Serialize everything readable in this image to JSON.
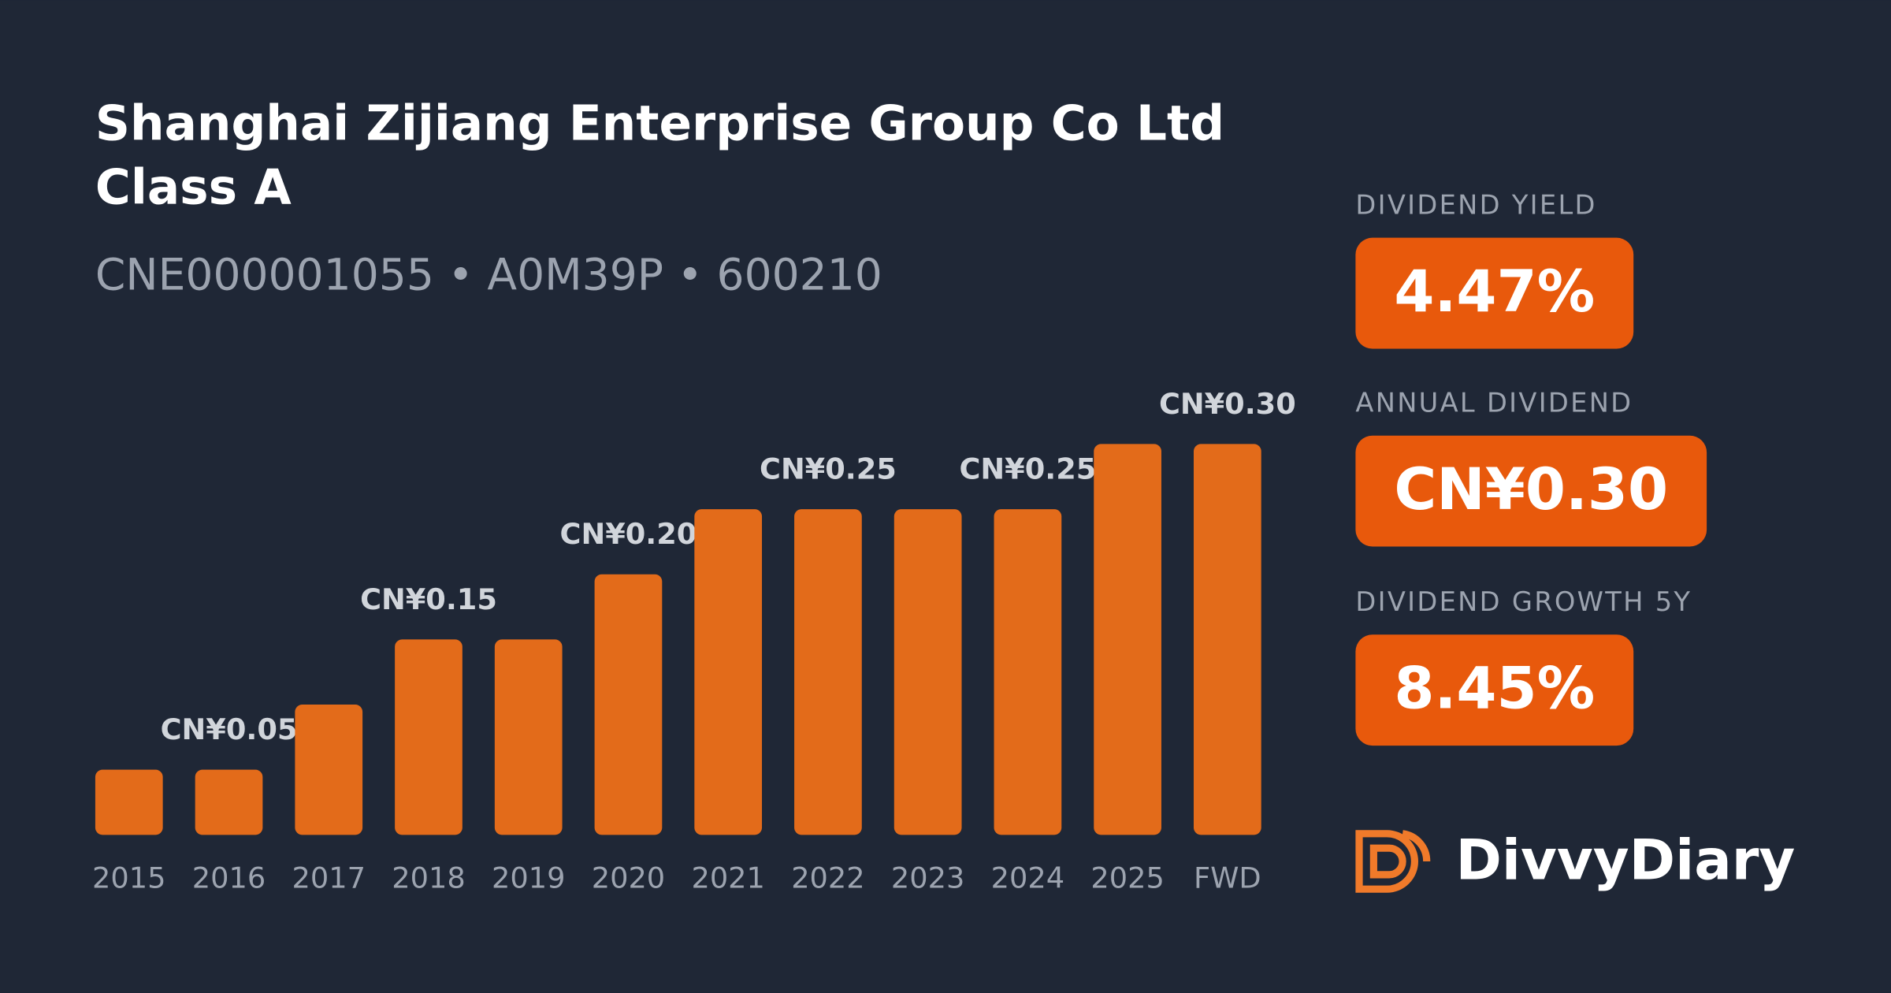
{
  "header": {
    "title_lines": [
      "Shanghai Zijiang Enterprise Group Co Ltd",
      "Class A"
    ],
    "identifiers": "CNE000001055 • A0M39P • 600210"
  },
  "stats": [
    {
      "label": "DIVIDEND YIELD",
      "value": "4.47%"
    },
    {
      "label": "ANNUAL DIVIDEND",
      "value": "CN¥0.30"
    },
    {
      "label": "DIVIDEND GROWTH 5Y",
      "value": "8.45%"
    }
  ],
  "brand": "DivvyDiary",
  "chart_data": {
    "type": "bar",
    "color": "#e36b1a",
    "categories": [
      "2015",
      "2016",
      "2017",
      "2018",
      "2019",
      "2020",
      "2021",
      "2022",
      "2023",
      "2024",
      "2025",
      "FWD"
    ],
    "values": [
      0.05,
      0.05,
      0.1,
      0.15,
      0.15,
      0.2,
      0.25,
      0.25,
      0.25,
      0.25,
      0.3,
      0.3
    ],
    "value_labels": [
      null,
      "CN¥0.05",
      null,
      "CN¥0.15",
      null,
      "CN¥0.20",
      null,
      "CN¥0.25",
      null,
      "CN¥0.25",
      null,
      "CN¥0.30"
    ]
  }
}
